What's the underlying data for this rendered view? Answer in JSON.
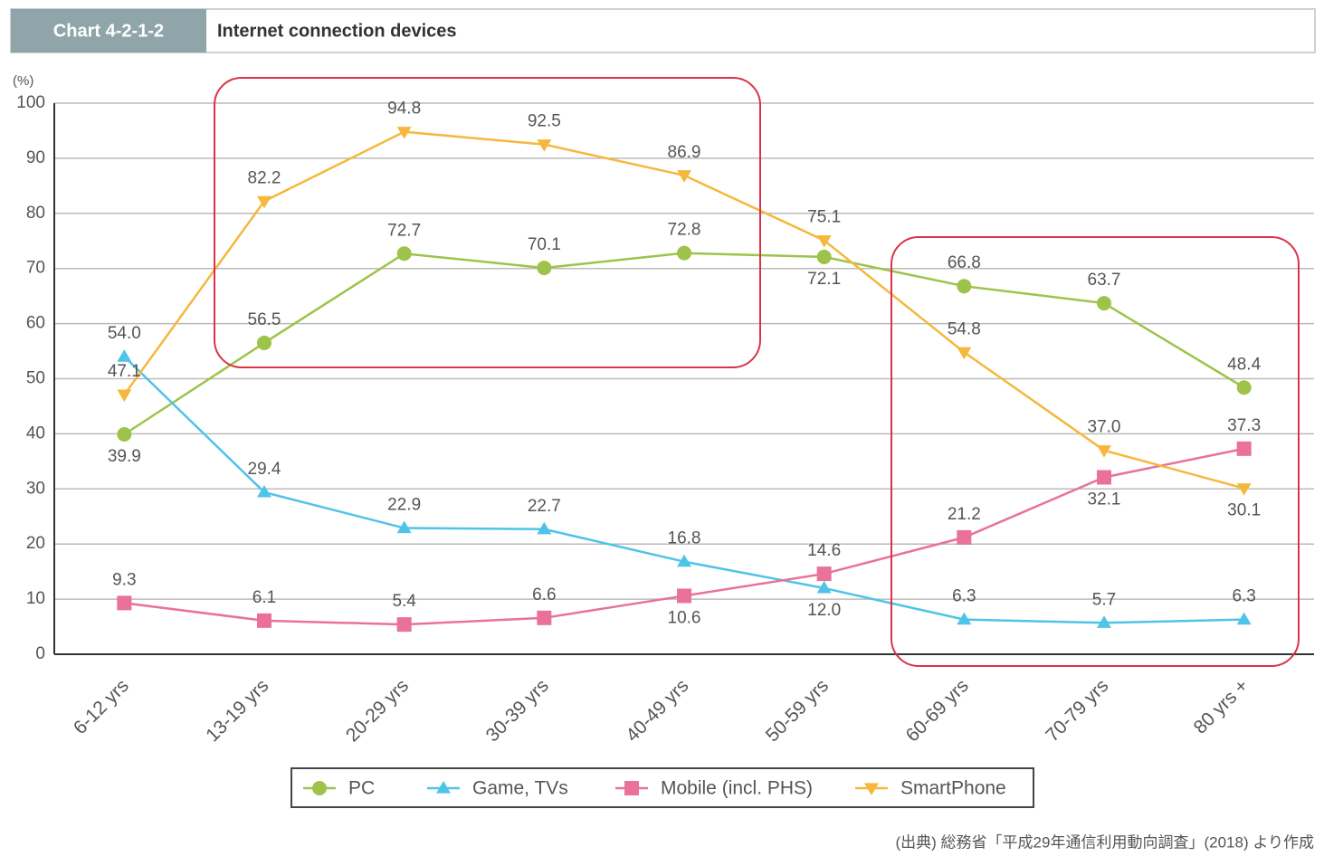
{
  "chart_data": {
    "type": "line",
    "chart_label": "Chart 4-2-1-2",
    "title": "Internet connection devices",
    "y_unit_label": "(%)",
    "source": "(出典) 総務省「平成29年通信利用動向調査」(2018) より作成",
    "categories": [
      "6-12 yrs",
      "13-19 yrs",
      "20-29 yrs",
      "30-39 yrs",
      "40-49 yrs",
      "50-59 yrs",
      "60-69 yrs",
      "70-79 yrs",
      "80 yrs +"
    ],
    "series": [
      {
        "name": "PC",
        "color": "#9dc34a",
        "marker": "circle",
        "values": [
          39.9,
          56.5,
          72.7,
          70.1,
          72.8,
          72.1,
          66.8,
          63.7,
          48.4
        ],
        "value_labels": [
          "39.9",
          "56.5",
          "72.7",
          "70.1",
          "72.8",
          "72.1",
          "66.8",
          "63.7",
          "48.4"
        ]
      },
      {
        "name": "Game, TVs",
        "color": "#4fc3e8",
        "marker": "triangle-up",
        "values": [
          54.0,
          29.4,
          22.9,
          22.7,
          16.8,
          12.0,
          6.3,
          5.7,
          6.3
        ],
        "value_labels": [
          "54.0",
          "29.4",
          "22.9",
          "22.7",
          "16.8",
          "12.0",
          "6.3",
          "5.7",
          "6.3"
        ]
      },
      {
        "name": "Mobile (incl. PHS)",
        "color": "#e9719a",
        "marker": "square",
        "values": [
          9.3,
          6.1,
          5.4,
          6.6,
          10.6,
          14.6,
          21.2,
          32.1,
          37.3
        ],
        "value_labels": [
          "9.3",
          "6.1",
          "5.4",
          "6.6",
          "10.6",
          "14.6",
          "21.2",
          "32.1",
          "37.3"
        ]
      },
      {
        "name": "SmartPhone",
        "color": "#f5b83d",
        "marker": "triangle-down",
        "values": [
          47.1,
          82.2,
          94.8,
          92.5,
          86.9,
          75.1,
          54.8,
          37.0,
          30.1
        ],
        "value_labels": [
          "47.1",
          "82.2",
          "94.8",
          "92.5",
          "86.9",
          "75.1",
          "54.8",
          "37.0",
          "30.1"
        ]
      }
    ],
    "ylim": [
      0,
      100
    ],
    "yticks": [
      0,
      10,
      20,
      30,
      40,
      50,
      60,
      70,
      80,
      90,
      100
    ],
    "grid": true
  }
}
